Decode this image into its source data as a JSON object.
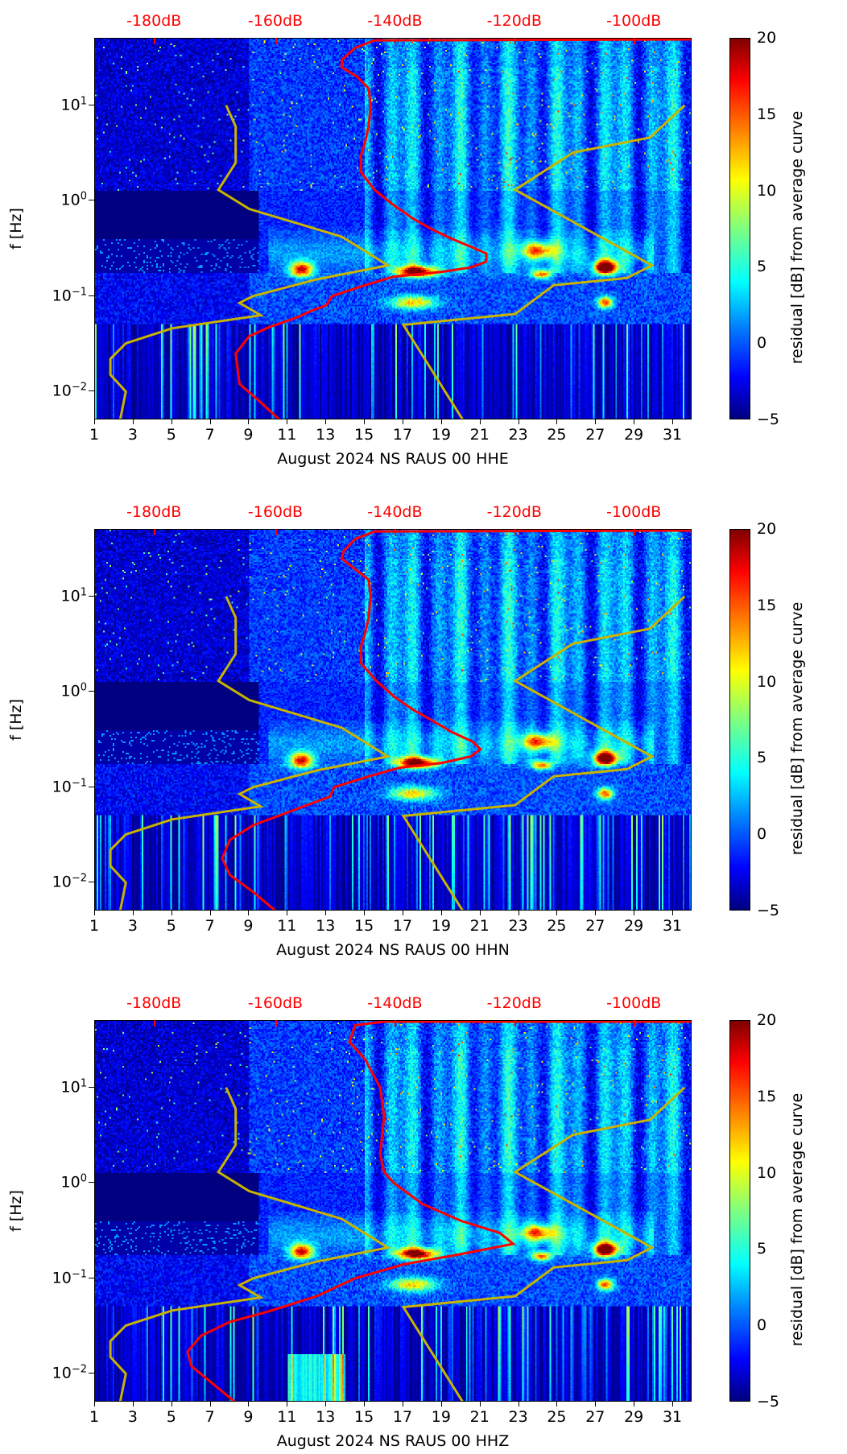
{
  "chart_data": {
    "type": "heatmap",
    "y_scale": "log",
    "ylim": [
      0.005,
      50
    ],
    "xlim": [
      1,
      32
    ],
    "ylabel": "f [Hz]",
    "yticks": [
      {
        "v": 10,
        "base": "10",
        "exp": "1"
      },
      {
        "v": 1,
        "base": "10",
        "exp": "0"
      },
      {
        "v": 0.1,
        "base": "10",
        "exp": "−1"
      },
      {
        "v": 0.01,
        "base": "10",
        "exp": "−2"
      }
    ],
    "xticks": [
      "1",
      "3",
      "5",
      "7",
      "9",
      "11",
      "13",
      "15",
      "17",
      "19",
      "21",
      "23",
      "25",
      "27",
      "29",
      "31"
    ],
    "top_axis_ticks": [
      {
        "label": "-180dB",
        "day": 4.1
      },
      {
        "label": "-160dB",
        "day": 10.4
      },
      {
        "label": "-140dB",
        "day": 16.6
      },
      {
        "label": "-120dB",
        "day": 22.8
      },
      {
        "label": "-100dB",
        "day": 29.0
      }
    ],
    "colorbar": {
      "label": "residual [dB] from average curve",
      "range": [
        -5,
        20
      ],
      "ticks": [
        "20",
        "15",
        "10",
        "5",
        "0",
        "−5"
      ]
    },
    "colors": {
      "mean_psd": "#ff0000",
      "noise_models": "#c8b400"
    },
    "noise_model_low": [
      [
        2.3,
        0.005
      ],
      [
        2.6,
        0.01
      ],
      [
        1.8,
        0.015
      ],
      [
        1.8,
        0.022
      ],
      [
        2.6,
        0.032
      ],
      [
        5,
        0.046
      ],
      [
        9.6,
        0.063
      ],
      [
        8.5,
        0.085
      ],
      [
        9.2,
        0.1
      ],
      [
        12.5,
        0.15
      ],
      [
        16.2,
        0.21
      ],
      [
        13.8,
        0.42
      ],
      [
        9.0,
        0.82
      ],
      [
        7.4,
        1.3
      ],
      [
        8.3,
        2.5
      ],
      [
        8.3,
        6
      ],
      [
        7.8,
        10
      ]
    ],
    "noise_model_high": [
      [
        20.1,
        0.005
      ],
      [
        17,
        0.05
      ],
      [
        22.8,
        0.065
      ],
      [
        24.8,
        0.13
      ],
      [
        28.6,
        0.155
      ],
      [
        29.9,
        0.21
      ],
      [
        22.8,
        1.3
      ],
      [
        25.8,
        3.2
      ],
      [
        29.8,
        4.6
      ],
      [
        31.6,
        10
      ]
    ],
    "panels": [
      {
        "xlabel": "August 2024 NS RAUS 00 HHE",
        "mean_psd": [
          [
            10.6,
            0.005
          ],
          [
            9.5,
            0.008
          ],
          [
            8.5,
            0.012
          ],
          [
            8.3,
            0.025
          ],
          [
            9.0,
            0.038
          ],
          [
            10,
            0.047
          ],
          [
            11.5,
            0.06
          ],
          [
            12.2,
            0.07
          ],
          [
            13.0,
            0.08
          ],
          [
            13.3,
            0.1
          ],
          [
            15.0,
            0.13
          ],
          [
            16.5,
            0.16
          ],
          [
            19,
            0.18
          ],
          [
            20.5,
            0.2
          ],
          [
            21.3,
            0.23
          ],
          [
            21.3,
            0.28
          ],
          [
            20.5,
            0.33
          ],
          [
            19.5,
            0.4
          ],
          [
            18.5,
            0.5
          ],
          [
            17.5,
            0.65
          ],
          [
            16.5,
            0.9
          ],
          [
            15.5,
            1.3
          ],
          [
            14.8,
            2
          ],
          [
            14.8,
            3
          ],
          [
            15,
            4
          ],
          [
            15.2,
            6
          ],
          [
            15.3,
            10
          ],
          [
            15.2,
            15
          ],
          [
            14.6,
            20
          ],
          [
            13.8,
            25
          ],
          [
            13.8,
            30
          ],
          [
            14.5,
            40
          ],
          [
            15.5,
            48
          ],
          [
            32,
            49
          ]
        ]
      },
      {
        "xlabel": "August 2024 NS RAUS 00 HHN",
        "mean_psd": [
          [
            10.4,
            0.005
          ],
          [
            9.2,
            0.008
          ],
          [
            8.0,
            0.012
          ],
          [
            7.6,
            0.018
          ],
          [
            8.0,
            0.028
          ],
          [
            9.2,
            0.04
          ],
          [
            10.5,
            0.05
          ],
          [
            12,
            0.065
          ],
          [
            13.2,
            0.08
          ],
          [
            13.4,
            0.1
          ],
          [
            15.2,
            0.13
          ],
          [
            16.8,
            0.16
          ],
          [
            19,
            0.18
          ],
          [
            20.5,
            0.21
          ],
          [
            21,
            0.25
          ],
          [
            20.6,
            0.3
          ],
          [
            19.5,
            0.38
          ],
          [
            18.5,
            0.5
          ],
          [
            17.5,
            0.65
          ],
          [
            16.5,
            0.9
          ],
          [
            15.6,
            1.3
          ],
          [
            14.8,
            2
          ],
          [
            14.8,
            3
          ],
          [
            15,
            4
          ],
          [
            15.2,
            6
          ],
          [
            15.3,
            10
          ],
          [
            15.2,
            15
          ],
          [
            14.4,
            20
          ],
          [
            13.8,
            25
          ],
          [
            13.9,
            30
          ],
          [
            14.5,
            40
          ],
          [
            15.5,
            48
          ],
          [
            32,
            49
          ]
        ]
      },
      {
        "xlabel": "August 2024 NS RAUS 00 HHZ",
        "mean_psd": [
          [
            8.3,
            0.005
          ],
          [
            6.0,
            0.012
          ],
          [
            5.8,
            0.017
          ],
          [
            6.5,
            0.025
          ],
          [
            8,
            0.035
          ],
          [
            10,
            0.045
          ],
          [
            12.5,
            0.065
          ],
          [
            14.5,
            0.1
          ],
          [
            17,
            0.14
          ],
          [
            20,
            0.18
          ],
          [
            22.7,
            0.23
          ],
          [
            22,
            0.3
          ],
          [
            20,
            0.4
          ],
          [
            18,
            0.6
          ],
          [
            16.5,
            1.0
          ],
          [
            16,
            1.3
          ],
          [
            15.8,
            2
          ],
          [
            16,
            5
          ],
          [
            15.8,
            10
          ],
          [
            15,
            20
          ],
          [
            14.2,
            30
          ],
          [
            14.5,
            45
          ],
          [
            16,
            49
          ],
          [
            32,
            49
          ]
        ]
      }
    ]
  }
}
